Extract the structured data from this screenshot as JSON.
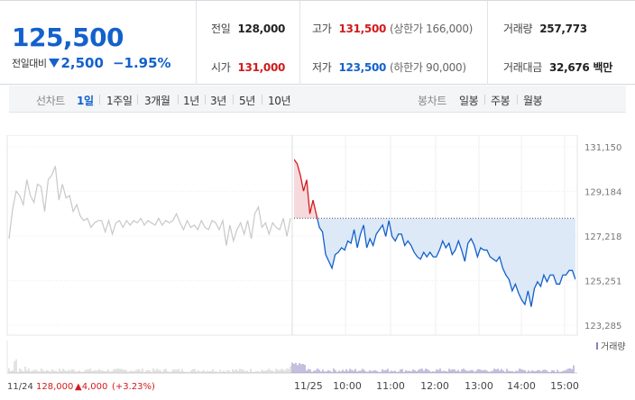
{
  "quote": {
    "price": "125,500",
    "change_label": "전일대비",
    "change": "2,500",
    "change_rate": "−1.95%",
    "direction": "down"
  },
  "stats": {
    "prev_close": {
      "label": "전일",
      "value": "128,000"
    },
    "open": {
      "label": "시가",
      "value": "131,000"
    },
    "high": {
      "label": "고가",
      "value": "131,500",
      "sub": "(상한가 166,000)"
    },
    "low": {
      "label": "저가",
      "value": "123,500",
      "sub": "(하한가 90,000)"
    },
    "volume": {
      "label": "거래량",
      "value": "257,773"
    },
    "amount": {
      "label": "거래대금",
      "value": "32,676",
      "unit": "백만"
    }
  },
  "tabs": {
    "line_label": "선차트",
    "line": [
      "1일",
      "1주일",
      "3개월",
      "1년",
      "3년",
      "5년",
      "10년"
    ],
    "active": "1일",
    "candle_label": "봉차트",
    "candle": [
      "일봉",
      "주봉",
      "월봉"
    ]
  },
  "colors": {
    "up": "#d21a1a",
    "down": "#1361cc",
    "prev_day_line": "#c8c8c8",
    "fill_down": "#dde9f7",
    "fill_up": "#f6d9dc"
  },
  "chart_data": {
    "type": "line",
    "y_ticks": [
      "131,150",
      "129,184",
      "127,218",
      "125,251",
      "123,285"
    ],
    "ylim": [
      123285,
      131150
    ],
    "baseline": 128000,
    "x_labels": [
      "11/24",
      "11/25",
      "10:00",
      "11:00",
      "12:00",
      "13:00",
      "14:00",
      "15:00"
    ],
    "prev_day_summary": {
      "date": "11/24",
      "close": "128,000",
      "change": "▲4,000",
      "rate": "(+3.23%)"
    },
    "volume_legend": "거래량",
    "series": [
      {
        "values_prev_day": [
          127100,
          128400,
          129200,
          129000,
          128600,
          129700,
          129000,
          128700,
          129500,
          129400,
          128300,
          129700,
          129900,
          130300,
          128800,
          129500,
          128900,
          129000,
          128300,
          128600,
          128100,
          127900,
          128000,
          127600,
          127800,
          127900,
          127900,
          127400,
          127900,
          127300,
          127800,
          127900,
          127600,
          127900,
          127700,
          127900,
          127800,
          128000,
          127700,
          127900,
          127800,
          127700,
          128000,
          127700,
          127900,
          127800,
          127900,
          128200,
          127800,
          127500,
          127900,
          127600,
          127700,
          127500,
          127900,
          127600,
          127500,
          127900,
          127800,
          127500,
          127900,
          126800,
          127700,
          127000,
          127500,
          127800,
          127300,
          127900,
          127100,
          128200,
          128500,
          127600,
          127800,
          127300,
          127800,
          127600,
          127500,
          128000,
          127200,
          128000
        ],
        "values_today": [
          130600,
          130400,
          129900,
          129200,
          129700,
          128200,
          128800,
          128200,
          127600,
          127400,
          126400,
          126100,
          125800,
          126400,
          126500,
          126700,
          126600,
          127000,
          126900,
          127500,
          126700,
          127300,
          127700,
          126700,
          127100,
          126800,
          127300,
          127500,
          127700,
          127200,
          127900,
          127200,
          127000,
          127300,
          127300,
          126800,
          127000,
          126800,
          126500,
          126300,
          126200,
          126500,
          126300,
          126500,
          126300,
          126300,
          126600,
          127000,
          126700,
          126900,
          126400,
          126600,
          127000,
          126600,
          126100,
          126900,
          127100,
          126800,
          126300,
          126700,
          126600,
          126600,
          126300,
          126200,
          126100,
          126300,
          125800,
          125500,
          125300,
          124800,
          125100,
          124700,
          124400,
          124200,
          124800,
          124100,
          124900,
          125200,
          125000,
          125500,
          125200,
          125500,
          125500,
          125100,
          125100,
          125500,
          125500,
          125700,
          125700,
          125300
        ]
      }
    ]
  }
}
